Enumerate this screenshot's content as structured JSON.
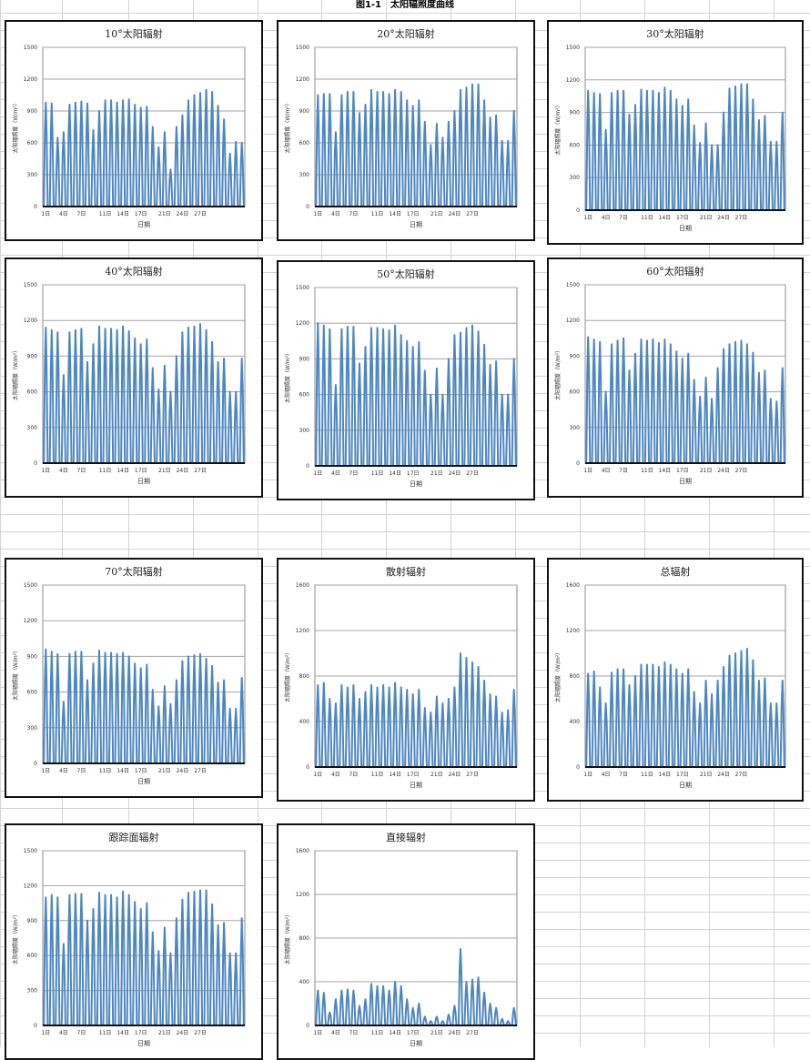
{
  "page_title": "图1-1　太阳辐照度曲线",
  "colors": {
    "series": "#4f86c0",
    "grid": "#a6a6a6",
    "frame": "#111111",
    "sheet_grid": "#d4d4d4"
  },
  "chart_data": [
    {
      "type": "line",
      "title": "10°太阳辐射",
      "xlabel": "日期",
      "ylabel": "太阳辐照度（W/m²）",
      "ylim": [
        0,
        1500
      ],
      "yticks": [
        "0",
        "300",
        "600",
        "900",
        "1200",
        "1500"
      ],
      "x_tick_labels": [
        "1日",
        "4日",
        "7日",
        "11日",
        "14日",
        "17日",
        "21日",
        "24日",
        "27日"
      ],
      "grid": true,
      "legend": "none",
      "daily_peaks": [
        980,
        970,
        650,
        700,
        960,
        980,
        990,
        970,
        720,
        900,
        1000,
        1000,
        980,
        1000,
        1010,
        960,
        930,
        940,
        750,
        560,
        700,
        350,
        750,
        860,
        1000,
        1050,
        1070,
        1100,
        1080,
        950,
        820,
        500,
        610,
        600
      ]
    },
    {
      "type": "line",
      "title": "20°太阳辐射",
      "xlabel": "日期",
      "ylabel": "太阳辐照度（W/m²）",
      "ylim": [
        0,
        1500
      ],
      "yticks": [
        "0",
        "300",
        "600",
        "900",
        "1200",
        "1500"
      ],
      "x_tick_labels": [
        "1日",
        "4日",
        "7日",
        "11日",
        "14日",
        "17日",
        "21日",
        "24日",
        "27日"
      ],
      "grid": true,
      "legend": "none",
      "daily_peaks": [
        1050,
        1060,
        1060,
        700,
        1050,
        1080,
        1080,
        880,
        960,
        1100,
        1080,
        1080,
        1060,
        1100,
        1080,
        1000,
        950,
        1000,
        800,
        580,
        780,
        650,
        800,
        900,
        1100,
        1120,
        1150,
        1150,
        1000,
        840,
        860,
        620,
        620,
        900
      ]
    },
    {
      "type": "line",
      "title": "30°太阳辐射",
      "xlabel": "日期",
      "ylabel": "太阳辐照度（W/m²）",
      "ylim": [
        0,
        1500
      ],
      "yticks": [
        "0",
        "300",
        "600",
        "900",
        "1200",
        "1500"
      ],
      "x_tick_labels": [
        "1日",
        "4日",
        "7日",
        "11日",
        "14日",
        "17日",
        "21日",
        "24日",
        "27日"
      ],
      "grid": true,
      "legend": "none",
      "daily_peaks": [
        1100,
        1080,
        1070,
        740,
        1080,
        1100,
        1100,
        880,
        970,
        1110,
        1100,
        1100,
        1080,
        1130,
        1100,
        1020,
        960,
        1020,
        780,
        620,
        800,
        600,
        600,
        900,
        1120,
        1140,
        1160,
        1160,
        1020,
        830,
        870,
        630,
        630,
        900
      ]
    },
    {
      "type": "line",
      "title": "40°太阳辐射",
      "xlabel": "日期",
      "ylabel": "太阳辐照度（W/m²）",
      "ylim": [
        0,
        1500
      ],
      "yticks": [
        "0",
        "300",
        "600",
        "900",
        "1200",
        "1500"
      ],
      "x_tick_labels": [
        "1日",
        "4日",
        "7日",
        "11日",
        "14日",
        "17日",
        "21日",
        "24日",
        "27日"
      ],
      "grid": true,
      "legend": "none",
      "daily_peaks": [
        1140,
        1120,
        1100,
        740,
        1100,
        1120,
        1130,
        850,
        1000,
        1150,
        1130,
        1130,
        1120,
        1150,
        1110,
        1050,
        1000,
        1040,
        800,
        620,
        820,
        600,
        900,
        1100,
        1140,
        1150,
        1170,
        1120,
        1020,
        850,
        880,
        600,
        600,
        880
      ]
    },
    {
      "type": "line",
      "title": "50°太阳辐射",
      "xlabel": "日期",
      "ylabel": "太阳辐照度（W/m²）",
      "ylim": [
        0,
        1500
      ],
      "yticks": [
        "0",
        "300",
        "600",
        "900",
        "1200",
        "1500"
      ],
      "x_tick_labels": [
        "1日",
        "4日",
        "7日",
        "11日",
        "14日",
        "17日",
        "21日",
        "24日",
        "27日"
      ],
      "grid": true,
      "legend": "none",
      "daily_peaks": [
        1200,
        1180,
        1150,
        680,
        1150,
        1170,
        1170,
        860,
        1000,
        1160,
        1160,
        1150,
        1140,
        1180,
        1100,
        1050,
        1000,
        1040,
        800,
        600,
        820,
        600,
        900,
        1100,
        1120,
        1160,
        1180,
        1130,
        1020,
        850,
        880,
        600,
        600,
        900
      ]
    },
    {
      "type": "line",
      "title": "60°太阳辐射",
      "xlabel": "日期",
      "ylabel": "太阳辐照度（W/m²）",
      "ylim": [
        0,
        1500
      ],
      "yticks": [
        "0",
        "300",
        "600",
        "900",
        "1200",
        "1500"
      ],
      "x_tick_labels": [
        "1日",
        "4日",
        "7日",
        "11日",
        "14日",
        "17日",
        "21日",
        "24日",
        "27日"
      ],
      "grid": true,
      "legend": "none",
      "daily_peaks": [
        1060,
        1040,
        1020,
        600,
        1000,
        1030,
        1050,
        780,
        920,
        1040,
        1030,
        1040,
        1010,
        1040,
        1000,
        940,
        880,
        920,
        700,
        560,
        720,
        540,
        800,
        960,
        1000,
        1020,
        1030,
        1000,
        930,
        760,
        780,
        540,
        520,
        800
      ]
    },
    {
      "type": "line",
      "title": "70°太阳辐射",
      "xlabel": "日期",
      "ylabel": "太阳辐照度（W/m²）",
      "ylim": [
        0,
        1500
      ],
      "yticks": [
        "0",
        "300",
        "600",
        "900",
        "1200",
        "1500"
      ],
      "x_tick_labels": [
        "1日",
        "4日",
        "7日",
        "11日",
        "14日",
        "17日",
        "21日",
        "24日",
        "27日"
      ],
      "grid": true,
      "legend": "none",
      "daily_peaks": [
        960,
        940,
        920,
        520,
        920,
        940,
        940,
        700,
        840,
        950,
        930,
        930,
        920,
        930,
        900,
        840,
        800,
        830,
        620,
        480,
        650,
        500,
        700,
        860,
        900,
        910,
        920,
        880,
        820,
        680,
        700,
        460,
        460,
        720
      ]
    },
    {
      "type": "line",
      "title": "散射辐射",
      "xlabel": "日期",
      "ylabel": "太阳辐照度（W/m²）",
      "ylim": [
        0,
        1600
      ],
      "yticks": [
        "0",
        "400",
        "800",
        "1200",
        "1600"
      ],
      "x_tick_labels": [
        "1日",
        "4日",
        "7日",
        "11日",
        "14日",
        "17日",
        "21日",
        "24日",
        "27日"
      ],
      "grid": true,
      "legend": "none",
      "daily_peaks": [
        720,
        740,
        600,
        560,
        720,
        700,
        720,
        600,
        660,
        720,
        700,
        720,
        700,
        740,
        700,
        680,
        640,
        680,
        520,
        480,
        620,
        560,
        600,
        700,
        1000,
        960,
        920,
        880,
        760,
        640,
        620,
        480,
        500,
        680
      ]
    },
    {
      "type": "line",
      "title": "总辐射",
      "xlabel": "日期",
      "ylabel": "太阳辐照度（W/m²）",
      "ylim": [
        0,
        1600
      ],
      "yticks": [
        "0",
        "400",
        "800",
        "1200",
        "1600"
      ],
      "x_tick_labels": [
        "1日",
        "4日",
        "7日",
        "11日",
        "14日",
        "17日",
        "21日",
        "24日",
        "27日"
      ],
      "grid": true,
      "legend": "none",
      "daily_peaks": [
        820,
        840,
        700,
        560,
        830,
        860,
        860,
        720,
        800,
        900,
        900,
        900,
        880,
        920,
        900,
        860,
        820,
        860,
        660,
        560,
        760,
        640,
        760,
        880,
        980,
        1000,
        1020,
        1040,
        940,
        760,
        780,
        560,
        560,
        760
      ]
    },
    {
      "type": "line",
      "title": "跟踪面辐射",
      "xlabel": "日期",
      "ylabel": "太阳辐照度（W/m²）",
      "ylim": [
        0,
        1500
      ],
      "yticks": [
        "0",
        "300",
        "600",
        "900",
        "1200",
        "1500"
      ],
      "x_tick_labels": [
        "1日",
        "4日",
        "7日",
        "11日",
        "14日",
        "17日",
        "21日",
        "24日",
        "27日"
      ],
      "grid": true,
      "legend": "none",
      "daily_peaks": [
        1100,
        1120,
        1100,
        700,
        1120,
        1130,
        1130,
        900,
        1000,
        1140,
        1120,
        1120,
        1100,
        1150,
        1120,
        1060,
        1000,
        1050,
        800,
        640,
        840,
        620,
        920,
        1080,
        1140,
        1150,
        1160,
        1160,
        1040,
        860,
        880,
        620,
        620,
        920
      ]
    },
    {
      "type": "line",
      "title": "直接辐射",
      "xlabel": "日期",
      "ylabel": "太阳辐照度（W/m²）",
      "ylim": [
        0,
        1600
      ],
      "yticks": [
        "0",
        "400",
        "800",
        "1200",
        "1600"
      ],
      "x_tick_labels": [
        "1日",
        "4日",
        "7日",
        "11日",
        "14日",
        "17日",
        "21日",
        "24日",
        "27日"
      ],
      "grid": true,
      "legend": "none",
      "daily_peaks": [
        320,
        300,
        120,
        240,
        320,
        330,
        320,
        180,
        240,
        380,
        360,
        360,
        320,
        400,
        360,
        240,
        160,
        200,
        80,
        40,
        80,
        40,
        100,
        180,
        700,
        400,
        420,
        440,
        300,
        200,
        160,
        60,
        40,
        160
      ]
    }
  ]
}
